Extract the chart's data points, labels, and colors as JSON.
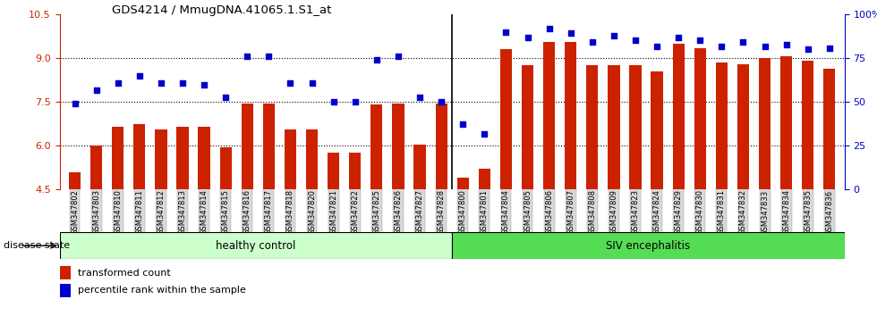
{
  "title": "GDS4214 / MmugDNA.41065.1.S1_at",
  "categories": [
    "GSM347802",
    "GSM347803",
    "GSM347810",
    "GSM347811",
    "GSM347812",
    "GSM347813",
    "GSM347814",
    "GSM347815",
    "GSM347816",
    "GSM347817",
    "GSM347818",
    "GSM347820",
    "GSM347821",
    "GSM347822",
    "GSM347825",
    "GSM347826",
    "GSM347827",
    "GSM347828",
    "GSM347800",
    "GSM347801",
    "GSM347804",
    "GSM347805",
    "GSM347806",
    "GSM347807",
    "GSM347808",
    "GSM347809",
    "GSM347823",
    "GSM347824",
    "GSM347829",
    "GSM347830",
    "GSM347831",
    "GSM347832",
    "GSM347833",
    "GSM347834",
    "GSM347835",
    "GSM347836"
  ],
  "bar_values": [
    5.1,
    6.0,
    6.65,
    6.75,
    6.55,
    6.65,
    6.65,
    5.95,
    7.45,
    7.45,
    6.55,
    6.55,
    5.75,
    5.75,
    7.4,
    7.45,
    6.05,
    7.45,
    4.9,
    5.2,
    9.3,
    8.75,
    9.55,
    9.55,
    8.75,
    8.75,
    8.75,
    8.55,
    9.5,
    9.35,
    8.85,
    8.8,
    9.0,
    9.05,
    8.9,
    8.65
  ],
  "dot_values": [
    7.45,
    7.9,
    8.15,
    8.4,
    8.15,
    8.15,
    8.1,
    7.65,
    9.05,
    9.05,
    8.15,
    8.15,
    7.5,
    7.5,
    8.95,
    9.05,
    7.65,
    7.5,
    6.75,
    6.4,
    9.9,
    9.7,
    10.0,
    9.85,
    9.55,
    9.75,
    9.6,
    9.4,
    9.7,
    9.6,
    9.4,
    9.55,
    9.4,
    9.45,
    9.3,
    9.35
  ],
  "healthy_count": 18,
  "siv_count": 18,
  "ylim_left": [
    4.5,
    10.5
  ],
  "yticks_left": [
    4.5,
    6.0,
    7.5,
    9.0,
    10.5
  ],
  "ylim_right_labels": [
    0,
    25,
    50,
    75,
    100
  ],
  "bar_color": "#cc2200",
  "dot_color": "#0000cc",
  "healthy_color": "#ccffcc",
  "siv_color": "#55dd55",
  "legend_transformed": "transformed count",
  "legend_percentile": "percentile rank within the sample",
  "label_disease": "disease state",
  "label_healthy": "healthy control",
  "label_siv": "SIV encephalitis"
}
